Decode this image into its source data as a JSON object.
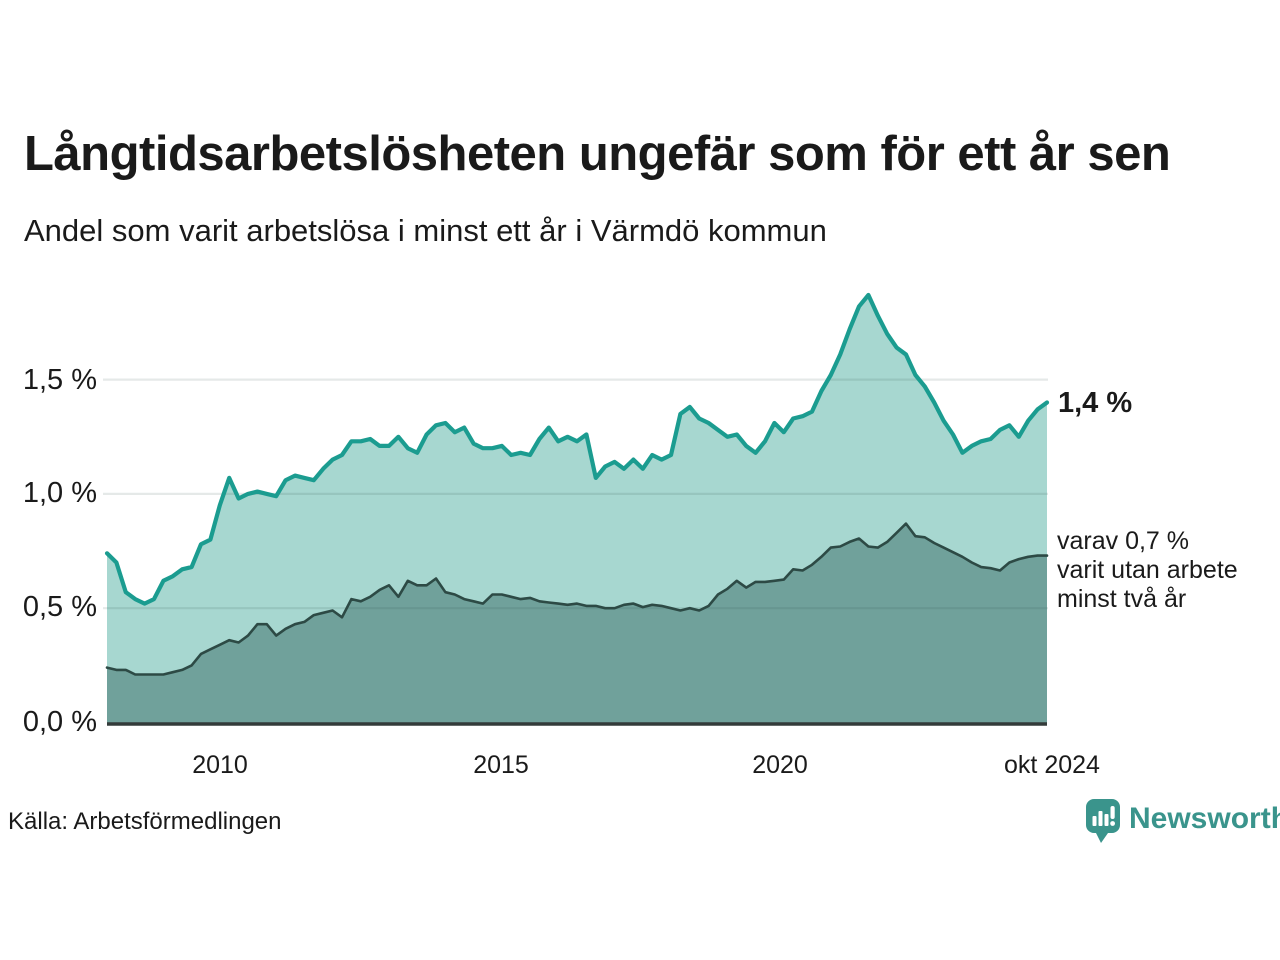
{
  "title": "Långtidsarbetslösheten ungefär som för ett år sen",
  "subtitle": "Andel som varit arbetslösa i minst ett år i Värmdö kommun",
  "y_axis": {
    "ticks": [
      "1,5 %",
      "1,0 %",
      "0,5 %",
      "0,0 %"
    ]
  },
  "x_axis": {
    "ticks": [
      "2010",
      "2015",
      "2020",
      "okt 2024"
    ]
  },
  "annotations": {
    "latest_value": "1,4 %",
    "secondary": [
      "varav 0,7 %",
      "varit utan arbete",
      "minst två år"
    ]
  },
  "source": "Källa: Arbetsförmedlingen",
  "branding": {
    "name": "Newsworthy",
    "icon": "bar-chart-speech-bubble-icon",
    "color": "#3a948c"
  },
  "colors": {
    "line_one_year": "#1b9c90",
    "fill_one_year": "#a7d7d0",
    "line_two_years": "#2d4a45",
    "fill_two_years": "#70a19b",
    "axis": "#333b3a",
    "gridline": "rgba(45,70,65,0.12)",
    "text": "#1a1a1a"
  },
  "chart_data": {
    "type": "area",
    "title": "Långtidsarbetslösheten ungefär som för ett år sen",
    "subtitle": "Andel som varit arbetslösa i minst ett år i Värmdö kommun",
    "unit": "%",
    "x_start": "2008-01",
    "x_end": "2024-10",
    "sampling": "every 2 months, evenly spaced",
    "xlabel_ticks": [
      "2010",
      "2015",
      "2020",
      "okt 2024"
    ],
    "ylim": [
      0,
      1.95
    ],
    "grid": true,
    "legend_position": "right-annotations",
    "series": [
      {
        "name": "Andel arbetslösa minst ett år",
        "latest_label": "1,4 %",
        "values": [
          0.74,
          0.7,
          0.57,
          0.54,
          0.52,
          0.54,
          0.62,
          0.64,
          0.67,
          0.68,
          0.78,
          0.8,
          0.95,
          1.07,
          0.98,
          1.0,
          1.01,
          1.0,
          0.99,
          1.06,
          1.08,
          1.07,
          1.06,
          1.11,
          1.15,
          1.17,
          1.23,
          1.23,
          1.24,
          1.21,
          1.21,
          1.25,
          1.2,
          1.18,
          1.26,
          1.3,
          1.31,
          1.27,
          1.29,
          1.22,
          1.2,
          1.2,
          1.21,
          1.17,
          1.18,
          1.17,
          1.24,
          1.29,
          1.23,
          1.25,
          1.23,
          1.26,
          1.07,
          1.12,
          1.14,
          1.11,
          1.15,
          1.11,
          1.17,
          1.15,
          1.17,
          1.35,
          1.38,
          1.33,
          1.31,
          1.28,
          1.25,
          1.26,
          1.21,
          1.18,
          1.23,
          1.31,
          1.27,
          1.33,
          1.34,
          1.36,
          1.45,
          1.52,
          1.61,
          1.72,
          1.82,
          1.87,
          1.78,
          1.7,
          1.64,
          1.61,
          1.52,
          1.47,
          1.4,
          1.32,
          1.26,
          1.18,
          1.21,
          1.23,
          1.24,
          1.28,
          1.3,
          1.25,
          1.32,
          1.37,
          1.4
        ]
      },
      {
        "name": "varav arbetslösa minst två år",
        "latest_label": "varav 0,7 % varit utan arbete minst två år",
        "values": [
          0.24,
          0.23,
          0.23,
          0.21,
          0.21,
          0.21,
          0.21,
          0.22,
          0.23,
          0.25,
          0.3,
          0.32,
          0.34,
          0.36,
          0.35,
          0.38,
          0.43,
          0.43,
          0.38,
          0.41,
          0.43,
          0.44,
          0.47,
          0.48,
          0.49,
          0.46,
          0.54,
          0.53,
          0.55,
          0.58,
          0.6,
          0.55,
          0.62,
          0.6,
          0.6,
          0.63,
          0.57,
          0.56,
          0.54,
          0.53,
          0.52,
          0.56,
          0.56,
          0.55,
          0.54,
          0.545,
          0.53,
          0.525,
          0.52,
          0.515,
          0.52,
          0.51,
          0.51,
          0.5,
          0.5,
          0.515,
          0.52,
          0.505,
          0.515,
          0.51,
          0.5,
          0.49,
          0.5,
          0.49,
          0.51,
          0.56,
          0.585,
          0.62,
          0.59,
          0.615,
          0.615,
          0.62,
          0.625,
          0.67,
          0.665,
          0.69,
          0.725,
          0.765,
          0.77,
          0.79,
          0.805,
          0.77,
          0.765,
          0.79,
          0.83,
          0.87,
          0.815,
          0.81,
          0.785,
          0.765,
          0.745,
          0.725,
          0.7,
          0.68,
          0.675,
          0.665,
          0.7,
          0.715,
          0.725,
          0.73,
          0.73
        ]
      }
    ]
  }
}
